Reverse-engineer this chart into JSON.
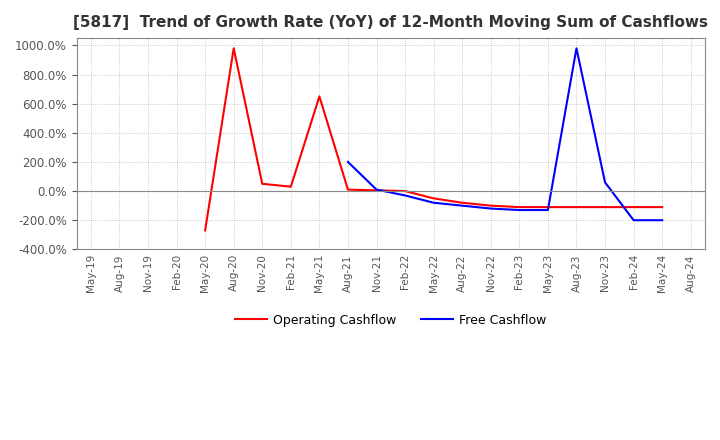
{
  "title": "[5817]  Trend of Growth Rate (YoY) of 12-Month Moving Sum of Cashflows",
  "title_fontsize": 11,
  "ylim": [
    -400,
    1050
  ],
  "yticks": [
    -400,
    -200,
    0,
    200,
    400,
    600,
    800,
    1000
  ],
  "legend_labels": [
    "Operating Cashflow",
    "Free Cashflow"
  ],
  "line_colors": [
    "red",
    "blue"
  ],
  "operating_cashflow_x": [
    4,
    5,
    6,
    7,
    8,
    9,
    10,
    11,
    12,
    13,
    14,
    15,
    16,
    17,
    18,
    19,
    20
  ],
  "operating_cashflow_y": [
    -270,
    980,
    50,
    30,
    650,
    10,
    5,
    0,
    -50,
    -80,
    -100,
    -110,
    -110,
    -110,
    -110,
    -110,
    -110
  ],
  "free_cashflow_x": [
    9,
    10,
    11,
    12,
    13,
    14,
    15,
    16,
    17,
    18,
    19,
    20
  ],
  "free_cashflow_y": [
    200,
    10,
    -30,
    -80,
    -100,
    -120,
    -130,
    -130,
    980,
    60,
    -200,
    -200
  ],
  "background_color": "#ffffff",
  "grid_color": "#bbbbbb",
  "xtick_labels": [
    "May-19",
    "Aug-19",
    "Nov-19",
    "Feb-20",
    "May-20",
    "Aug-20",
    "Nov-20",
    "Feb-21",
    "May-21",
    "Aug-21",
    "Nov-21",
    "Feb-22",
    "May-22",
    "Aug-22",
    "Nov-22",
    "Feb-23",
    "May-23",
    "Aug-23",
    "Nov-23",
    "Feb-24",
    "May-24",
    "Aug-24"
  ],
  "n_xticks": 22
}
